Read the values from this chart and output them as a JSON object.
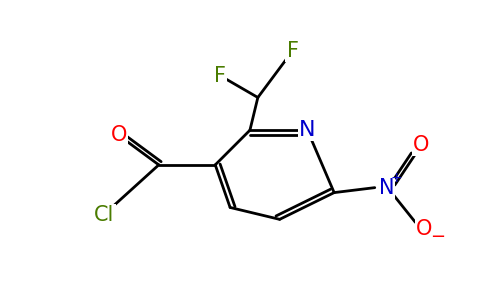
{
  "bg_color": "#ffffff",
  "atom_colors": {
    "C": "#000000",
    "N": "#0000cc",
    "O": "#ff0000",
    "F": "#4a7c00",
    "Cl": "#4a7c00"
  },
  "bond_color": "#000000",
  "bond_width": 2.0,
  "font_size": 15
}
